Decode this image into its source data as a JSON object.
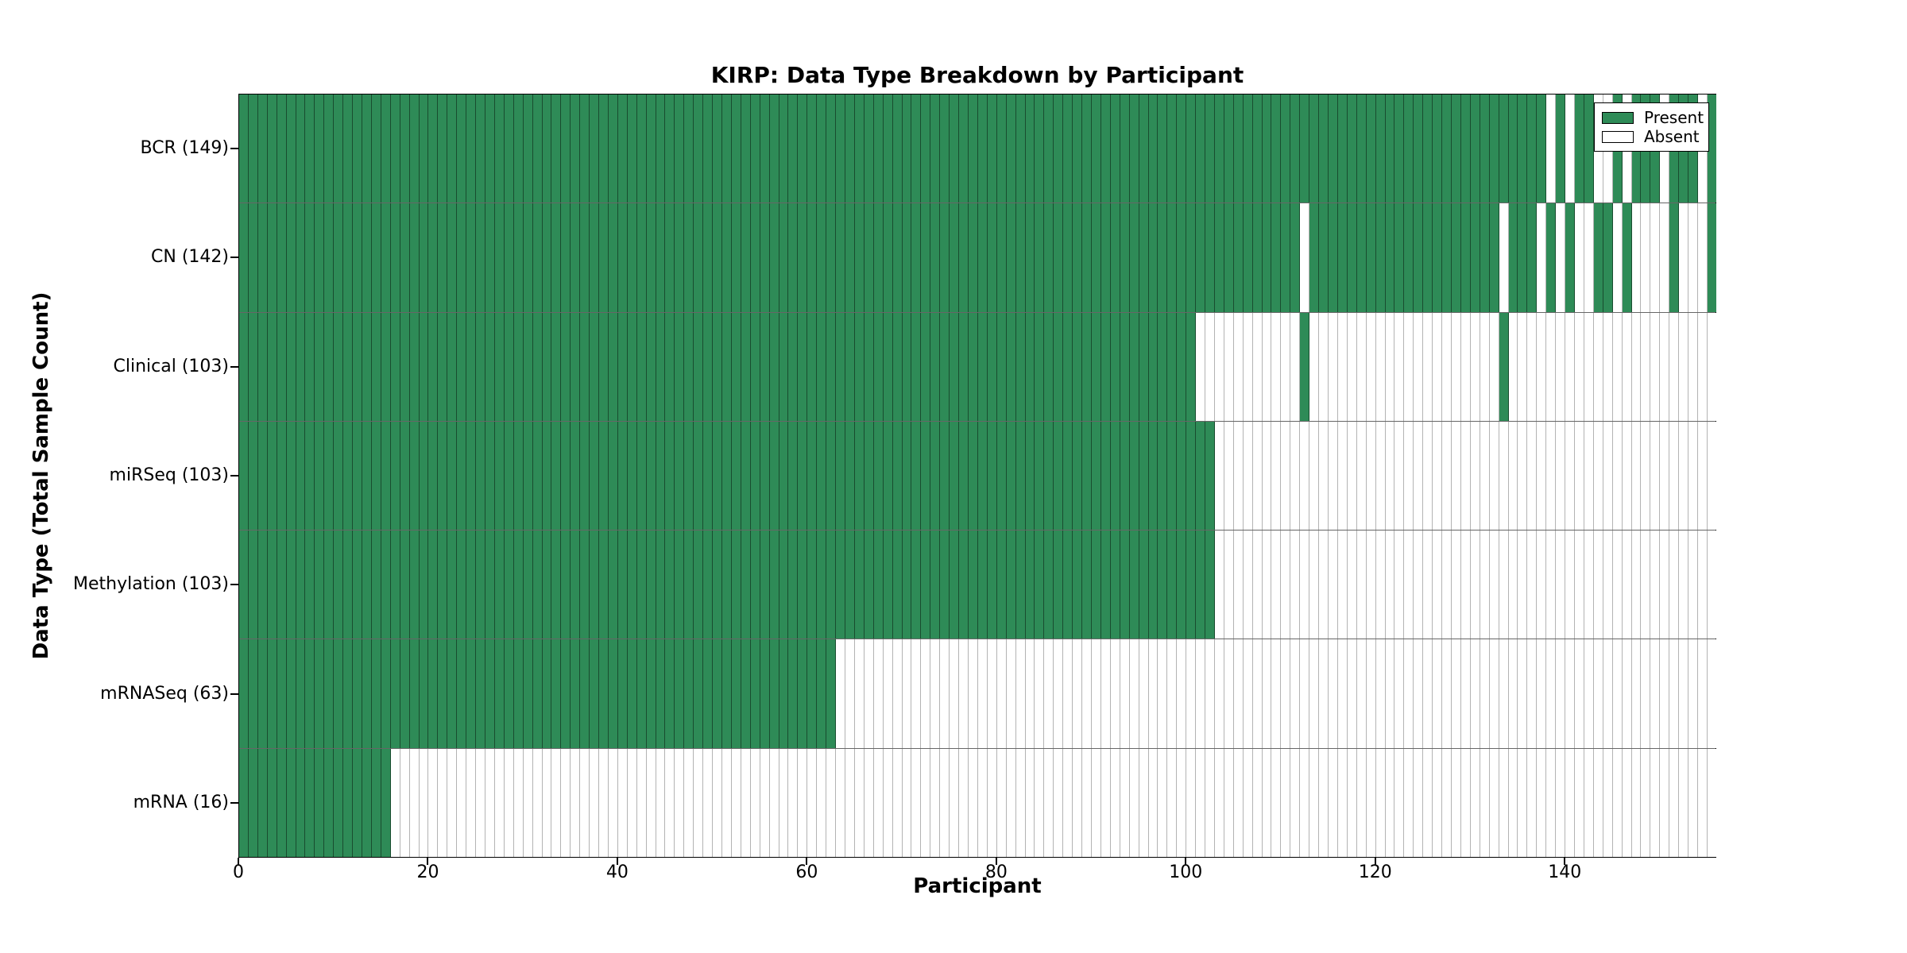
{
  "chart_data": {
    "type": "heatmap",
    "title": "KIRP: Data Type Breakdown by Participant",
    "xlabel": "Participant",
    "ylabel": "Data Type (Total Sample Count)",
    "xlim": [
      0,
      156
    ],
    "n_participants": 156,
    "x_ticks": [
      0,
      20,
      40,
      60,
      80,
      100,
      120,
      140
    ],
    "grid": true,
    "legend_position": "upper right",
    "legend": [
      {
        "label": "Present",
        "color": "#2e8b57"
      },
      {
        "label": "Absent",
        "color": "#ffffff"
      }
    ],
    "rows": [
      {
        "label": "BCR (149)",
        "data_type": "BCR",
        "total_sample_count": 149,
        "present_ranges": [
          [
            0,
            137
          ],
          [
            139,
            139
          ],
          [
            141,
            142
          ],
          [
            145,
            145
          ],
          [
            147,
            149
          ],
          [
            151,
            153
          ],
          [
            155,
            155
          ]
        ]
      },
      {
        "label": "CN (142)",
        "data_type": "CN",
        "total_sample_count": 142,
        "present_ranges": [
          [
            0,
            111
          ],
          [
            113,
            132
          ],
          [
            134,
            136
          ],
          [
            138,
            138
          ],
          [
            140,
            140
          ],
          [
            143,
            144
          ],
          [
            146,
            146
          ],
          [
            151,
            151
          ],
          [
            155,
            155
          ]
        ]
      },
      {
        "label": "Clinical (103)",
        "data_type": "Clinical",
        "total_sample_count": 103,
        "present_ranges": [
          [
            0,
            100
          ],
          [
            112,
            112
          ],
          [
            133,
            133
          ]
        ]
      },
      {
        "label": "miRSeq (103)",
        "data_type": "miRSeq",
        "total_sample_count": 103,
        "present_ranges": [
          [
            0,
            102
          ]
        ]
      },
      {
        "label": "Methylation (103)",
        "data_type": "Methylation",
        "total_sample_count": 103,
        "present_ranges": [
          [
            0,
            102
          ]
        ]
      },
      {
        "label": "mRNASeq (63)",
        "data_type": "mRNASeq",
        "total_sample_count": 63,
        "present_ranges": [
          [
            0,
            62
          ]
        ]
      },
      {
        "label": "mRNA (16)",
        "data_type": "mRNA",
        "total_sample_count": 16,
        "present_ranges": [
          [
            0,
            15
          ]
        ]
      }
    ],
    "colors": {
      "present": "#2e8b57",
      "absent": "#ffffff",
      "grid_on_present": "rgba(0,0,0,0.45)",
      "grid_on_absent": "#b3b3b3",
      "row_divider": "rgba(0,0,0,0.6)",
      "spine": "#000000"
    }
  }
}
